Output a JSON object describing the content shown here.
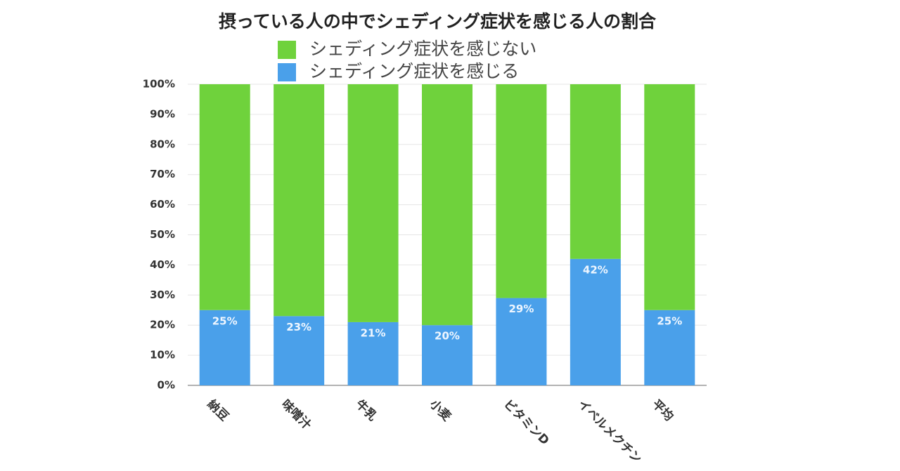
{
  "chart_data": {
    "type": "stacked_bar",
    "title": "摂っている人の中でシェディング症状を感じる人の割合",
    "categories": [
      "納豆",
      "味噌汁",
      "牛乳",
      "小麦",
      "ビタミンD",
      "イベルメクチン",
      "平均"
    ],
    "series": [
      {
        "name": "シェディング症状を感じる",
        "color": "#4aa0ea",
        "values": [
          25,
          23,
          21,
          20,
          29,
          42,
          25
        ],
        "value_labels": [
          "25%",
          "23%",
          "21%",
          "20%",
          "29%",
          "42%",
          "25%"
        ]
      },
      {
        "name": "シェディング症状を感じない",
        "color": "#6fd23c",
        "values": [
          75,
          77,
          79,
          80,
          71,
          58,
          75
        ]
      }
    ],
    "ylim": [
      0,
      100
    ],
    "yticks": [
      {
        "value": 0,
        "label": "0%"
      },
      {
        "value": 10,
        "label": "10%"
      },
      {
        "value": 20,
        "label": "20%"
      },
      {
        "value": 30,
        "label": "30%"
      },
      {
        "value": 40,
        "label": "40%"
      },
      {
        "value": 50,
        "label": "50%"
      },
      {
        "value": 60,
        "label": "60%"
      },
      {
        "value": 70,
        "label": "70%"
      },
      {
        "value": 80,
        "label": "80%"
      },
      {
        "value": 90,
        "label": "90%"
      },
      {
        "value": 100,
        "label": "100%"
      }
    ],
    "grid": true
  }
}
